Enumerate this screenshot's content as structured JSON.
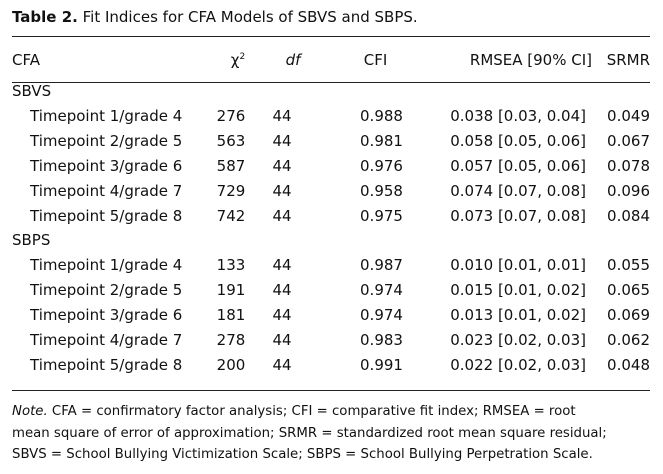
{
  "title": {
    "label": "Table 2.",
    "text": "Fit Indices for CFA Models of SBVS and SBPS."
  },
  "columns": {
    "cfa": "CFA",
    "chi_base": "χ",
    "chi_sup": "2",
    "df": "df",
    "cfi": "CFI",
    "rmsea": "RMSEA [90% CI]",
    "srmr": "SRMR"
  },
  "sections": [
    {
      "name": "SBVS",
      "rows": [
        {
          "label": "Timepoint 1/grade 4",
          "chi2": "276",
          "df": "44",
          "cfi": "0.988",
          "rmsea": "0.038 [0.03, 0.04]",
          "srmr": "0.049"
        },
        {
          "label": "Timepoint 2/grade 5",
          "chi2": "563",
          "df": "44",
          "cfi": "0.981",
          "rmsea": "0.058 [0.05, 0.06]",
          "srmr": "0.067"
        },
        {
          "label": "Timepoint 3/grade 6",
          "chi2": "587",
          "df": "44",
          "cfi": "0.976",
          "rmsea": "0.057 [0.05, 0.06]",
          "srmr": "0.078"
        },
        {
          "label": "Timepoint 4/grade 7",
          "chi2": "729",
          "df": "44",
          "cfi": "0.958",
          "rmsea": "0.074 [0.07, 0.08]",
          "srmr": "0.096"
        },
        {
          "label": "Timepoint 5/grade 8",
          "chi2": "742",
          "df": "44",
          "cfi": "0.975",
          "rmsea": "0.073 [0.07, 0.08]",
          "srmr": "0.084"
        }
      ]
    },
    {
      "name": "SBPS",
      "rows": [
        {
          "label": "Timepoint 1/grade 4",
          "chi2": "133",
          "df": "44",
          "cfi": "0.987",
          "rmsea": "0.010 [0.01, 0.01]",
          "srmr": "0.055"
        },
        {
          "label": "Timepoint 2/grade 5",
          "chi2": "191",
          "df": "44",
          "cfi": "0.974",
          "rmsea": "0.015 [0.01, 0.02]",
          "srmr": "0.065"
        },
        {
          "label": "Timepoint 3/grade 6",
          "chi2": "181",
          "df": "44",
          "cfi": "0.974",
          "rmsea": "0.013 [0.01, 0.02]",
          "srmr": "0.069"
        },
        {
          "label": "Timepoint 4/grade 7",
          "chi2": "278",
          "df": "44",
          "cfi": "0.983",
          "rmsea": "0.023 [0.02, 0.03]",
          "srmr": "0.062"
        },
        {
          "label": "Timepoint 5/grade 8",
          "chi2": "200",
          "df": "44",
          "cfi": "0.991",
          "rmsea": "0.022 [0.02, 0.03]",
          "srmr": "0.048"
        }
      ]
    }
  ],
  "note": {
    "label": "Note.",
    "line1": " CFA = confirmatory factor analysis; CFI = comparative fit index; RMSEA = root",
    "line2": "mean square of error of approximation; SRMR = standardized root mean square residual;",
    "line3": "SBVS = School Bullying Victimization Scale; SBPS = School Bullying Perpetration Scale."
  }
}
